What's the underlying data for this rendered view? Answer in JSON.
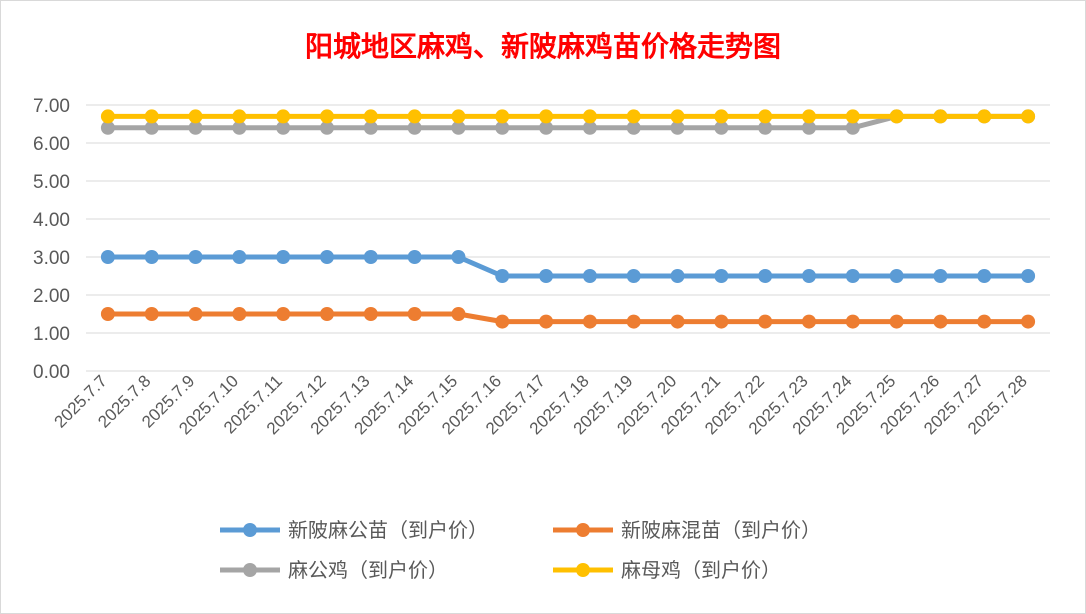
{
  "chart_data": {
    "type": "line",
    "title": "阳城地区麻鸡、新陂麻鸡苗价格走势图",
    "xlabel": "",
    "ylabel": "",
    "ylim": [
      0,
      7
    ],
    "yticks": [
      "0.00",
      "1.00",
      "2.00",
      "3.00",
      "4.00",
      "5.00",
      "6.00",
      "7.00"
    ],
    "grid": true,
    "legend_position": "bottom",
    "categories": [
      "2025.7.7",
      "2025.7.8",
      "2025.7.9",
      "2025.7.10",
      "2025.7.11",
      "2025.7.12",
      "2025.7.13",
      "2025.7.14",
      "2025.7.15",
      "2025.7.16",
      "2025.7.17",
      "2025.7.18",
      "2025.7.19",
      "2025.7.20",
      "2025.7.21",
      "2025.7.22",
      "2025.7.23",
      "2025.7.24",
      "2025.7.25",
      "2025.7.26",
      "2025.7.27",
      "2025.7.28"
    ],
    "series": [
      {
        "name": "新陂麻公苗（到户价）",
        "color": "#5b9bd5",
        "values": [
          3.0,
          3.0,
          3.0,
          3.0,
          3.0,
          3.0,
          3.0,
          3.0,
          3.0,
          2.5,
          2.5,
          2.5,
          2.5,
          2.5,
          2.5,
          2.5,
          2.5,
          2.5,
          2.5,
          2.5,
          2.5,
          2.5
        ]
      },
      {
        "name": "新陂麻混苗（到户价）",
        "color": "#ed7d31",
        "values": [
          1.5,
          1.5,
          1.5,
          1.5,
          1.5,
          1.5,
          1.5,
          1.5,
          1.5,
          1.3,
          1.3,
          1.3,
          1.3,
          1.3,
          1.3,
          1.3,
          1.3,
          1.3,
          1.3,
          1.3,
          1.3,
          1.3
        ]
      },
      {
        "name": "麻公鸡（到户价）",
        "color": "#a5a5a5",
        "values": [
          6.4,
          6.4,
          6.4,
          6.4,
          6.4,
          6.4,
          6.4,
          6.4,
          6.4,
          6.4,
          6.4,
          6.4,
          6.4,
          6.4,
          6.4,
          6.4,
          6.4,
          6.4,
          6.7,
          6.7,
          6.7,
          6.7
        ]
      },
      {
        "name": "麻母鸡（到户价）",
        "color": "#ffc000",
        "values": [
          6.7,
          6.7,
          6.7,
          6.7,
          6.7,
          6.7,
          6.7,
          6.7,
          6.7,
          6.7,
          6.7,
          6.7,
          6.7,
          6.7,
          6.7,
          6.7,
          6.7,
          6.7,
          6.7,
          6.7,
          6.7,
          6.7
        ]
      }
    ]
  }
}
